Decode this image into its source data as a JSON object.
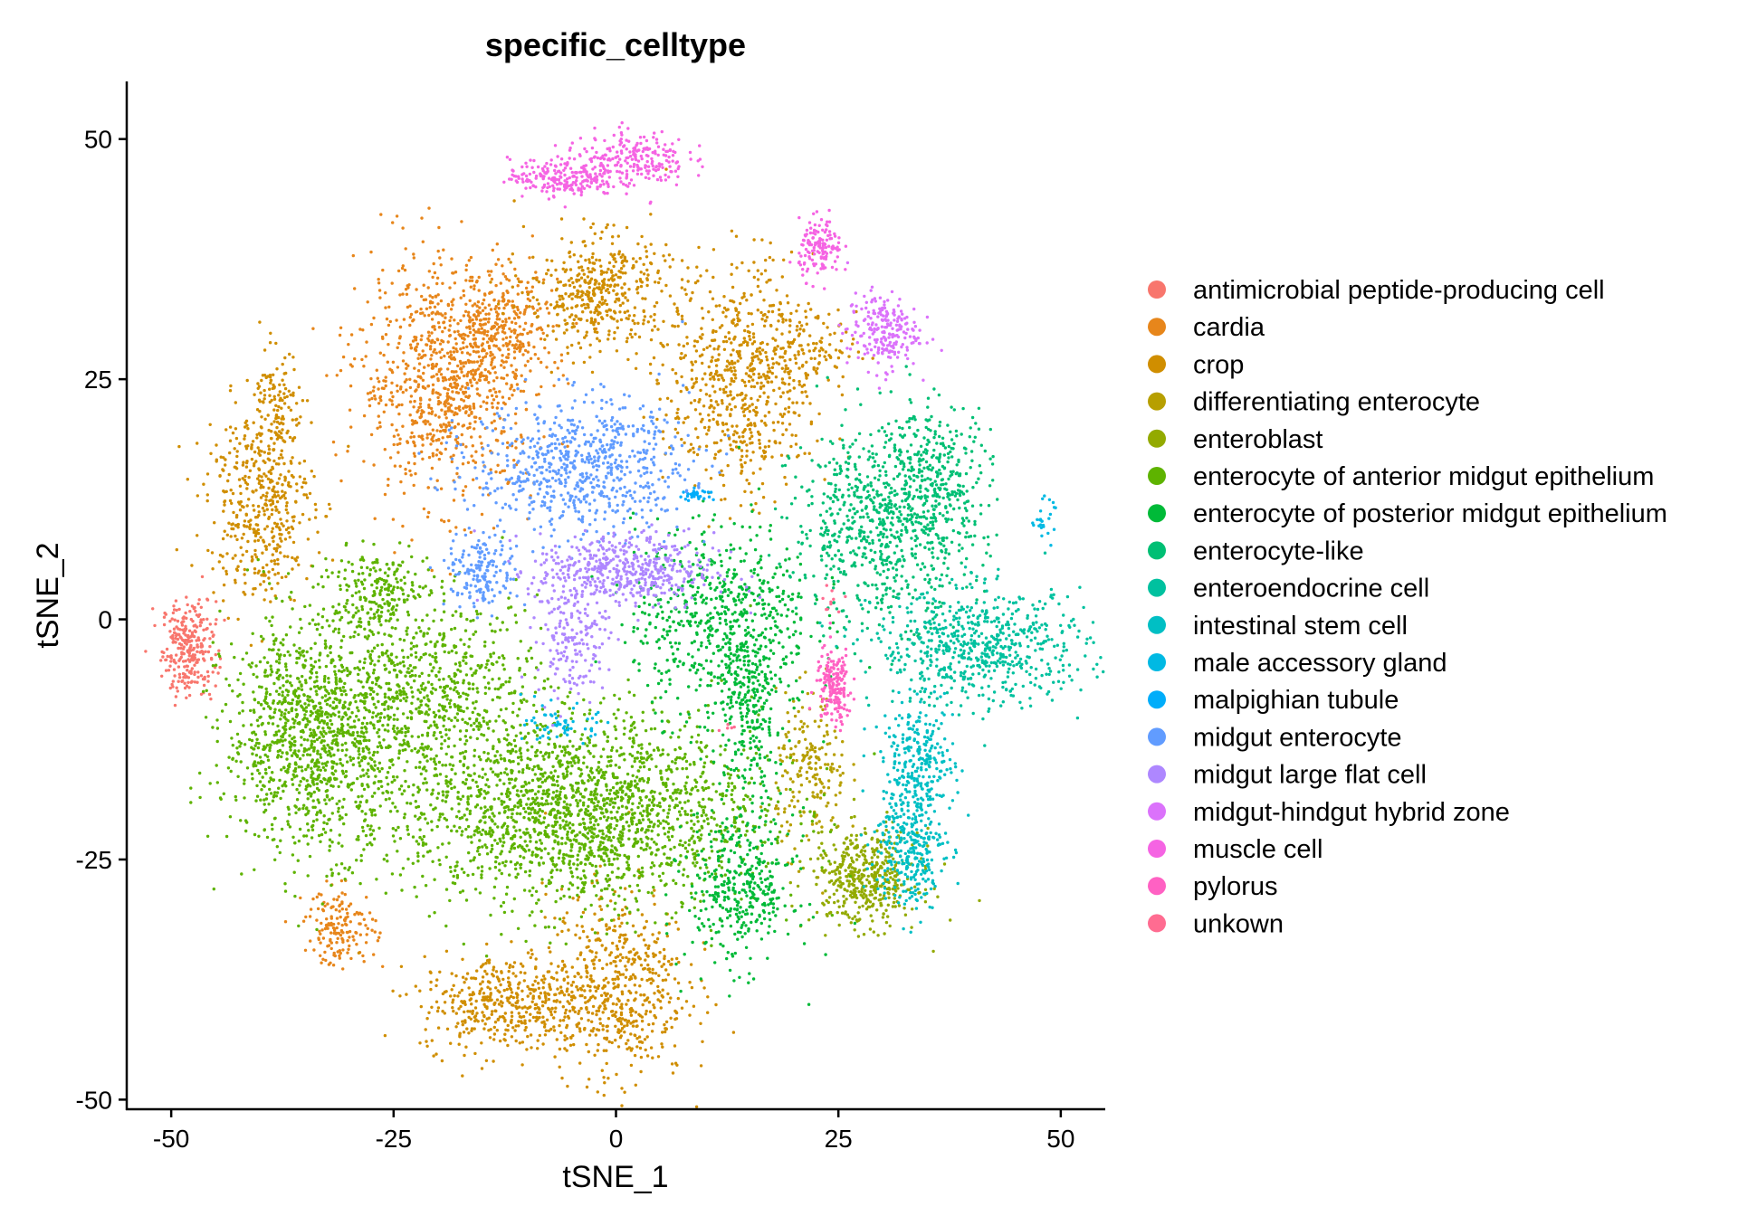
{
  "chart_data": {
    "type": "scatter",
    "title": "specific_celltype",
    "xlabel": "tSNE_1",
    "ylabel": "tSNE_2",
    "xlim": [
      -55,
      55
    ],
    "ylim": [
      -51,
      56
    ],
    "xticks": [
      -50,
      -25,
      0,
      25,
      50
    ],
    "yticks": [
      -50,
      -25,
      0,
      25,
      50
    ],
    "xtick_labels": [
      "-50",
      "-25",
      "0",
      "25",
      "50"
    ],
    "ytick_labels": [
      "-50",
      "-25",
      "0",
      "25",
      "50"
    ],
    "grid": false,
    "legend_position": "right",
    "series": [
      {
        "name": "antimicrobial peptide-producing cell",
        "color": "#F8766D",
        "clusters": [
          {
            "center": [
              -48,
              -3
            ],
            "spread": [
              1.5,
              2.5
            ],
            "n": 280
          }
        ]
      },
      {
        "name": "cardia",
        "color": "#E7861B",
        "clusters": [
          {
            "center": [
              -19,
              25
            ],
            "spread": [
              5,
              6
            ],
            "n": 900
          },
          {
            "center": [
              -13,
              30
            ],
            "spread": [
              3,
              3
            ],
            "n": 250
          },
          {
            "center": [
              -31,
              -32
            ],
            "spread": [
              2,
              2
            ],
            "n": 160
          }
        ]
      },
      {
        "name": "crop",
        "color": "#D08E00",
        "clusters": [
          {
            "center": [
              -40,
              12
            ],
            "spread": [
              3,
              5
            ],
            "n": 450
          },
          {
            "center": [
              -38,
              22
            ],
            "spread": [
              1.3,
              3
            ],
            "n": 120
          },
          {
            "center": [
              -2,
              34
            ],
            "spread": [
              4,
              3
            ],
            "n": 450
          },
          {
            "center": [
              14,
              25
            ],
            "spread": [
              4,
              6
            ],
            "n": 650
          },
          {
            "center": [
              21,
              28
            ],
            "spread": [
              3,
              2
            ],
            "n": 120
          },
          {
            "center": [
              -12,
              -40
            ],
            "spread": [
              5,
              2.5
            ],
            "n": 450
          },
          {
            "center": [
              0,
              -38
            ],
            "spread": [
              4,
              5
            ],
            "n": 550
          }
        ]
      },
      {
        "name": "differentiating enterocyte",
        "color": "#B79F00",
        "clusters": [
          {
            "center": [
              22,
              -16
            ],
            "spread": [
              2,
              4
            ],
            "n": 200
          }
        ]
      },
      {
        "name": "enteroblast",
        "color": "#93AA00",
        "clusters": [
          {
            "center": [
              28,
              -27
            ],
            "spread": [
              3,
              2.5
            ],
            "n": 450
          }
        ]
      },
      {
        "name": "enterocyte of anterior midgut epithelium",
        "color": "#5EB300",
        "clusters": [
          {
            "center": [
              -34,
              -12
            ],
            "spread": [
              5,
              6
            ],
            "n": 1200
          },
          {
            "center": [
              -20,
              -8
            ],
            "spread": [
              6,
              5
            ],
            "n": 700
          },
          {
            "center": [
              -27,
              3
            ],
            "spread": [
              3,
              2
            ],
            "n": 200
          },
          {
            "center": [
              -4,
              -20
            ],
            "spread": [
              10,
              5
            ],
            "n": 2000
          }
        ]
      },
      {
        "name": "enterocyte of posterior midgut epithelium",
        "color": "#00BA38",
        "clusters": [
          {
            "center": [
              12,
              0
            ],
            "spread": [
              5,
              5
            ],
            "n": 650
          },
          {
            "center": [
              15,
              -10
            ],
            "spread": [
              2,
              4
            ],
            "n": 220
          },
          {
            "center": [
              14,
              -28
            ],
            "spread": [
              3,
              4
            ],
            "n": 380
          }
        ]
      },
      {
        "name": "enterocyte-like",
        "color": "#00BF74",
        "clusters": [
          {
            "center": [
              30,
              10
            ],
            "spread": [
              5,
              5
            ],
            "n": 750
          },
          {
            "center": [
              36,
              15
            ],
            "spread": [
              3,
              4
            ],
            "n": 250
          }
        ]
      },
      {
        "name": "enteroendocrine cell",
        "color": "#00C19F",
        "clusters": [
          {
            "center": [
              41,
              -3
            ],
            "spread": [
              6,
              3
            ],
            "n": 650
          }
        ]
      },
      {
        "name": "intestinal stem cell",
        "color": "#00BFC4",
        "clusters": [
          {
            "center": [
              34,
              -15
            ],
            "spread": [
              2,
              3
            ],
            "n": 280
          },
          {
            "center": [
              33,
              -24
            ],
            "spread": [
              2,
              3
            ],
            "n": 280
          }
        ]
      },
      {
        "name": "male accessory gland",
        "color": "#00B9E3",
        "clusters": [
          {
            "center": [
              -6,
              -11
            ],
            "spread": [
              2,
              1
            ],
            "n": 60
          },
          {
            "center": [
              48,
              10.5
            ],
            "spread": [
              0.6,
              1
            ],
            "n": 25
          }
        ]
      },
      {
        "name": "malpighian tubule",
        "color": "#00ADFA",
        "clusters": [
          {
            "center": [
              9,
              13
            ],
            "spread": [
              1,
              0.3
            ],
            "n": 30
          }
        ]
      },
      {
        "name": "midgut enterocyte",
        "color": "#619CFF",
        "clusters": [
          {
            "center": [
              -4,
              16
            ],
            "spread": [
              6,
              3.5
            ],
            "n": 700
          },
          {
            "center": [
              -15,
              5
            ],
            "spread": [
              2,
              2
            ],
            "n": 170
          }
        ]
      },
      {
        "name": "midgut large flat cell",
        "color": "#AE87FF",
        "clusters": [
          {
            "center": [
              1,
              5
            ],
            "spread": [
              5,
              2
            ],
            "n": 500
          },
          {
            "center": [
              -5,
              -2
            ],
            "spread": [
              2,
              3
            ],
            "n": 170
          }
        ]
      },
      {
        "name": "midgut-hindgut hybrid zone",
        "color": "#DB72FB",
        "clusters": [
          {
            "center": [
              30,
              30
            ],
            "spread": [
              2,
              2
            ],
            "n": 220
          }
        ]
      },
      {
        "name": "muscle cell",
        "color": "#F564E3",
        "clusters": [
          {
            "center": [
              -6,
              46
            ],
            "spread": [
              3,
              1
            ],
            "n": 220
          },
          {
            "center": [
              2,
              48
            ],
            "spread": [
              3,
              1.5
            ],
            "n": 220
          },
          {
            "center": [
              23,
              38.5
            ],
            "spread": [
              1.2,
              1.5
            ],
            "n": 140
          }
        ]
      },
      {
        "name": "pylorus",
        "color": "#FF61C3",
        "clusters": [
          {
            "center": [
              24.5,
              -7
            ],
            "spread": [
              1,
              2
            ],
            "n": 180
          }
        ]
      },
      {
        "name": "unkown",
        "color": "#FF6C91",
        "clusters": [
          {
            "center": [
              24,
              2
            ],
            "spread": [
              0.6,
              0.6
            ],
            "n": 10
          },
          {
            "center": [
              12,
              -11
            ],
            "spread": [
              0.5,
              0.5
            ],
            "n": 5
          }
        ]
      }
    ]
  }
}
